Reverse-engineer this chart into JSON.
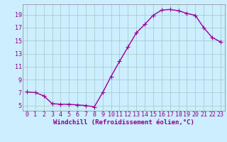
{
  "x": [
    0,
    1,
    2,
    3,
    4,
    5,
    6,
    7,
    8,
    9,
    10,
    11,
    12,
    13,
    14,
    15,
    16,
    17,
    18,
    19,
    20,
    21,
    22,
    23
  ],
  "y": [
    7.1,
    7.0,
    6.5,
    5.3,
    5.2,
    5.2,
    5.1,
    5.0,
    4.8,
    7.0,
    9.5,
    11.8,
    14.0,
    16.2,
    17.5,
    18.9,
    19.7,
    19.8,
    19.6,
    19.2,
    18.9,
    17.0,
    15.5,
    14.8
  ],
  "line_color": "#990099",
  "marker": "+",
  "marker_size": 4,
  "bg_color": "#cceeff",
  "grid_color": "#aacccc",
  "xlabel": "Windchill (Refroidissement éolien,°C)",
  "ylim": [
    4.2,
    20.6
  ],
  "xlim": [
    -0.5,
    23.5
  ],
  "yticks": [
    5,
    7,
    9,
    11,
    13,
    15,
    17,
    19
  ],
  "xticks": [
    0,
    1,
    2,
    3,
    4,
    5,
    6,
    7,
    8,
    9,
    10,
    11,
    12,
    13,
    14,
    15,
    16,
    17,
    18,
    19,
    20,
    21,
    22,
    23
  ],
  "axis_fontsize": 6.5,
  "tick_fontsize": 6.0,
  "line_width": 1.0,
  "marker_edge_width": 0.8,
  "spine_color": "#888888",
  "text_color": "#880088"
}
